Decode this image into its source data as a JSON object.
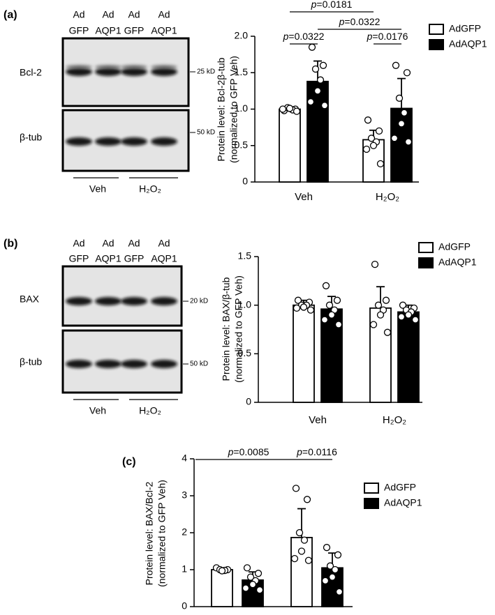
{
  "blots": [
    {
      "panel": "(a)",
      "lanes": [
        [
          "Ad",
          "GFP"
        ],
        [
          "Ad",
          "AQP1"
        ],
        [
          "Ad",
          "GFP"
        ],
        [
          "Ad",
          "AQP1"
        ]
      ],
      "bands": [
        {
          "label": "Bcl-2",
          "marker": "25 kD"
        },
        {
          "label": "β-tub",
          "marker": "50 kD"
        }
      ],
      "groups": [
        "Veh",
        "H₂O₂"
      ]
    },
    {
      "panel": "(b)",
      "lanes": [
        [
          "Ad",
          "GFP"
        ],
        [
          "Ad",
          "AQP1"
        ],
        [
          "Ad",
          "GFP"
        ],
        [
          "Ad",
          "AQP1"
        ]
      ],
      "bands": [
        {
          "label": "BAX",
          "marker": "20 kD"
        },
        {
          "label": "β-tub",
          "marker": "50 kD"
        }
      ],
      "groups": [
        "Veh",
        "H₂O₂"
      ]
    }
  ],
  "chart_data": [
    {
      "type": "bar",
      "ylabel": [
        "Protein level: Bcl-2β-tub",
        "(normalized to GFP Veh)"
      ],
      "categories": [
        "Veh",
        "H₂O₂"
      ],
      "series": [
        {
          "name": "AdGFP",
          "color": "#ffffff",
          "values": [
            1.0,
            0.58
          ],
          "errors": [
            0.03,
            0.13
          ],
          "points": [
            [
              0.98,
              1.0,
              1.02,
              0.99,
              1.01,
              1.0,
              0.97
            ],
            [
              0.85,
              0.7,
              0.6,
              0.55,
              0.5,
              0.45,
              0.25
            ]
          ]
        },
        {
          "name": "AdAQP1",
          "color": "#000000",
          "values": [
            1.38,
            1.01
          ],
          "errors": [
            0.28,
            0.41
          ],
          "points": [
            [
              1.85,
              1.6,
              1.55,
              1.4,
              1.25,
              1.1,
              1.05
            ],
            [
              1.6,
              1.5,
              1.15,
              0.95,
              0.8,
              0.6,
              0.55
            ]
          ]
        }
      ],
      "ylim": [
        0,
        2.0
      ],
      "yticks": [
        0,
        0.5,
        {
          "value": 1.0,
          "label": "1.0"
        },
        1.5,
        {
          "value": 2.0,
          "label": "2.0"
        }
      ],
      "annotations": [
        "p=0.0181",
        "p=0.0322",
        "p=0.0322",
        "p=0.0176"
      ]
    },
    {
      "type": "bar",
      "ylabel": [
        "Protein level: BAX/β-tub",
        "(normalized to GFP Veh)"
      ],
      "categories": [
        "Veh",
        "H₂O₂"
      ],
      "series": [
        {
          "name": "AdGFP",
          "color": "#ffffff",
          "values": [
            1.0,
            0.97
          ],
          "errors": [
            0.05,
            0.22
          ],
          "points": [
            [
              1.05,
              1.03,
              1.0,
              1.0,
              0.98,
              0.97,
              0.95
            ],
            [
              1.42,
              1.05,
              1.0,
              0.95,
              0.9,
              0.8,
              0.72
            ]
          ]
        },
        {
          "name": "AdAQP1",
          "color": "#000000",
          "values": [
            0.96,
            0.93
          ],
          "errors": [
            0.13,
            0.07
          ],
          "points": [
            [
              1.2,
              1.05,
              1.0,
              0.95,
              0.9,
              0.85,
              0.8
            ],
            [
              1.0,
              0.97,
              0.95,
              0.93,
              0.9,
              0.88,
              0.85
            ]
          ]
        }
      ],
      "ylim": [
        0,
        1.5
      ],
      "yticks": [
        0,
        0.5,
        {
          "value": 1.0,
          "label": "1.0"
        },
        1.5
      ],
      "annotations": []
    },
    {
      "type": "bar",
      "panel": "(c)",
      "ylabel": [
        "Protein level: BAX/Bcl-2",
        "(normalized to GFP Veh)"
      ],
      "categories": [
        null,
        null
      ],
      "series": [
        {
          "name": "AdGFP",
          "color": "#ffffff",
          "values": [
            1.0,
            1.87
          ],
          "errors": [
            0.05,
            0.78
          ],
          "points": [
            [
              1.05,
              1.0,
              1.0,
              0.98,
              0.97
            ],
            [
              3.2,
              2.9,
              2.0,
              1.8,
              1.5,
              1.3,
              1.25
            ]
          ]
        },
        {
          "name": "AdAQP1",
          "color": "#000000",
          "values": [
            0.72,
            1.05
          ],
          "errors": [
            0.22,
            0.4
          ],
          "points": [
            [
              1.05,
              0.9,
              0.8,
              0.7,
              0.6,
              0.5,
              0.45
            ],
            [
              1.6,
              1.4,
              1.1,
              1.0,
              0.8,
              0.7,
              0.4
            ]
          ]
        }
      ],
      "ylim": [
        0,
        4
      ],
      "yticks": [
        0,
        1,
        2,
        3,
        4
      ],
      "annotations": [
        "p=0.0085",
        "p=0.0116"
      ]
    }
  ]
}
